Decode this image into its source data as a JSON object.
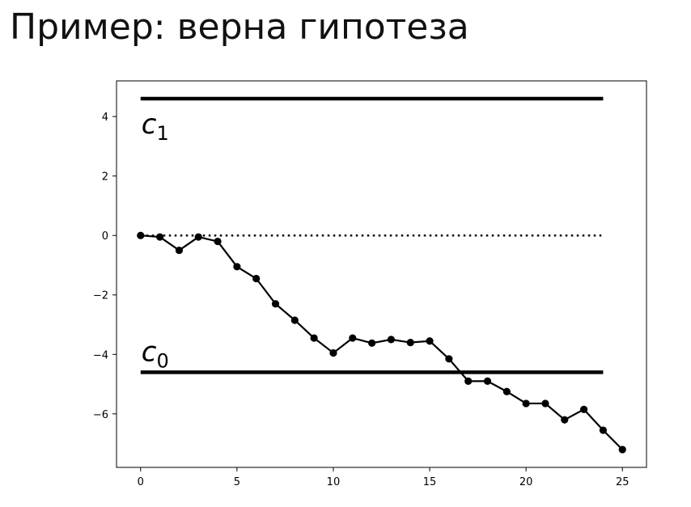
{
  "slide": {
    "title": "Пример: верна гипотеза"
  },
  "chart_data": {
    "type": "line",
    "xlim": [
      -1.25,
      26.25
    ],
    "ylim": [
      -7.8,
      5.2
    ],
    "x_ticks": [
      0,
      5,
      10,
      15,
      20,
      25
    ],
    "y_ticks": [
      4,
      2,
      0,
      -2,
      -4,
      -6
    ],
    "y_tick_labels": [
      "4",
      "2",
      "0",
      "−2",
      "−4",
      "−6"
    ],
    "grid": false,
    "series": [
      {
        "style": "solid-with-markers",
        "color": "#000000",
        "x": [
          0,
          1,
          2,
          3,
          4,
          5,
          6,
          7,
          8,
          9,
          10,
          11,
          12,
          13,
          14,
          15,
          16,
          17,
          18,
          19,
          20,
          21,
          22,
          23,
          24,
          25
        ],
        "y": [
          0.0,
          -0.05,
          -0.5,
          -0.05,
          -0.2,
          -1.05,
          -1.45,
          -2.3,
          -2.85,
          -3.45,
          -3.95,
          -3.45,
          -3.62,
          -3.5,
          -3.6,
          -3.55,
          -4.15,
          -4.9,
          -4.9,
          -5.25,
          -5.65,
          -5.65,
          -6.2,
          -5.85,
          -6.55,
          -7.2
        ]
      }
    ],
    "reference_lines": [
      {
        "kind": "dotted",
        "y": 0,
        "x_range": [
          0,
          24
        ]
      },
      {
        "kind": "threshold",
        "y": 4.6,
        "x_range": [
          0,
          24
        ],
        "label": "c",
        "subscript": "1"
      },
      {
        "kind": "threshold",
        "y": -4.6,
        "x_range": [
          0,
          24
        ],
        "label": "c",
        "subscript": "0"
      }
    ]
  }
}
